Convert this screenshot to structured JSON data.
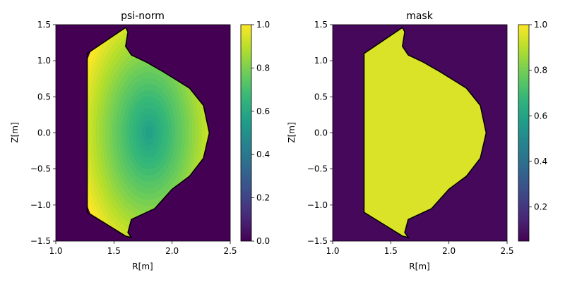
{
  "chart_data": [
    {
      "type": "heatmap",
      "title": "psi-norm",
      "xlabel": "R[m]",
      "ylabel": "Z[m]",
      "xlim": [
        1.0,
        2.5
      ],
      "ylim": [
        -1.5,
        1.5
      ],
      "xticks": [
        "1.0",
        "1.5",
        "2.0",
        "2.5"
      ],
      "yticks": [
        "-1.5",
        "-1.0",
        "-0.5",
        "0.0",
        "0.5",
        "1.0",
        "1.5"
      ],
      "colorbar": {
        "range": [
          0.0,
          1.0
        ],
        "ticks": [
          "0.0",
          "0.2",
          "0.4",
          "0.6",
          "0.8",
          "1.0"
        ]
      },
      "colormap": "viridis",
      "field": {
        "center": [
          1.8,
          0.0
        ],
        "peak": 1.0,
        "boundary_value": 0.55,
        "outside_value": 0.0
      },
      "boundary": [
        [
          1.27,
          1.1
        ],
        [
          1.27,
          -1.1
        ],
        [
          1.6,
          -1.43
        ],
        [
          1.65,
          -1.45
        ],
        [
          1.62,
          -1.38
        ],
        [
          1.65,
          -1.2
        ],
        [
          1.85,
          -1.05
        ],
        [
          2.0,
          -0.78
        ],
        [
          2.15,
          -0.6
        ],
        [
          2.27,
          -0.35
        ],
        [
          2.32,
          0.0
        ],
        [
          2.27,
          0.38
        ],
        [
          2.15,
          0.62
        ],
        [
          2.05,
          0.72
        ],
        [
          1.92,
          0.85
        ],
        [
          1.78,
          0.98
        ],
        [
          1.65,
          1.08
        ],
        [
          1.6,
          1.2
        ],
        [
          1.62,
          1.4
        ],
        [
          1.6,
          1.46
        ],
        [
          1.27,
          1.1
        ]
      ]
    },
    {
      "type": "heatmap",
      "title": "mask",
      "xlabel": "R[m]",
      "ylabel": "Z[m]",
      "xlim": [
        1.0,
        2.5
      ],
      "ylim": [
        -1.5,
        1.5
      ],
      "xticks": [
        "1.0",
        "1.5",
        "2.0",
        "2.5"
      ],
      "yticks": [
        "-1.5",
        "-1.0",
        "-0.5",
        "0.0",
        "0.5",
        "1.0",
        "1.5"
      ],
      "colorbar": {
        "range": [
          0.05,
          1.0
        ],
        "ticks": [
          "0.2",
          "0.4",
          "0.6",
          "0.8",
          "1.0"
        ]
      },
      "colormap": "viridis",
      "field": {
        "inside_value": 0.95,
        "outside_value": 0.07
      },
      "boundary": [
        [
          1.27,
          1.1
        ],
        [
          1.27,
          -1.1
        ],
        [
          1.6,
          -1.43
        ],
        [
          1.65,
          -1.45
        ],
        [
          1.62,
          -1.38
        ],
        [
          1.65,
          -1.2
        ],
        [
          1.85,
          -1.05
        ],
        [
          2.0,
          -0.78
        ],
        [
          2.15,
          -0.6
        ],
        [
          2.27,
          -0.35
        ],
        [
          2.32,
          0.0
        ],
        [
          2.27,
          0.38
        ],
        [
          2.15,
          0.62
        ],
        [
          2.05,
          0.72
        ],
        [
          1.92,
          0.85
        ],
        [
          1.78,
          0.98
        ],
        [
          1.65,
          1.08
        ],
        [
          1.6,
          1.2
        ],
        [
          1.62,
          1.4
        ],
        [
          1.6,
          1.46
        ],
        [
          1.27,
          1.1
        ]
      ]
    }
  ]
}
